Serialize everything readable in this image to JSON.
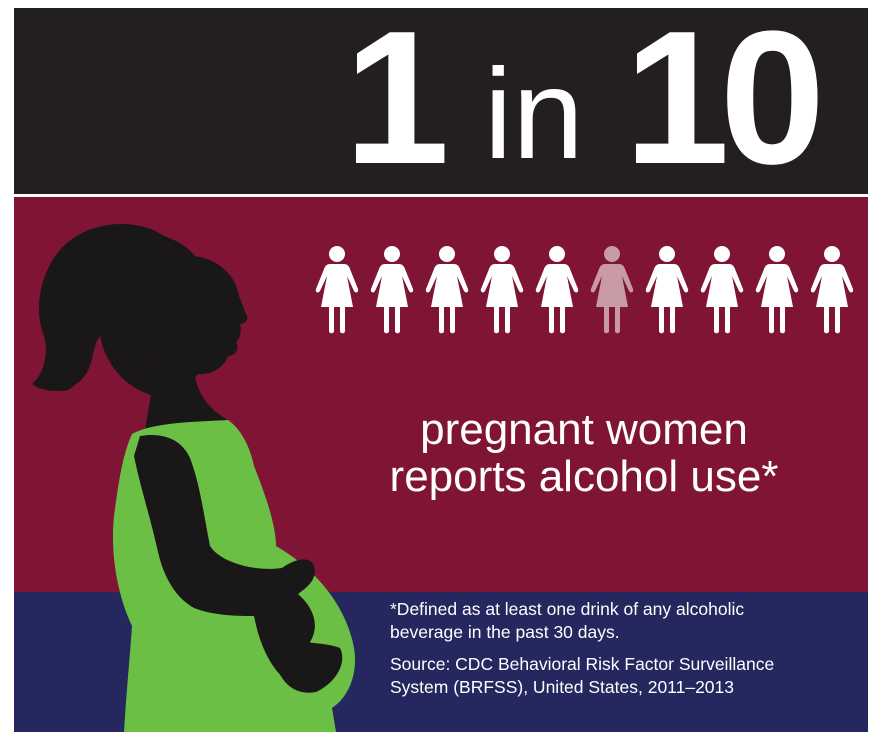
{
  "headline": {
    "number": "1",
    "connector": "in",
    "total": "10"
  },
  "icon_row": {
    "count": 10,
    "highlighted_index": 5,
    "icon": "woman-figure-icon",
    "colors": {
      "default": "#ffffff",
      "highlight": "#c89aa5"
    }
  },
  "statement": {
    "line1": "pregnant women",
    "line2": "reports alcohol use*"
  },
  "footnote": {
    "definition_line1": "*Defined as at least one drink of any alcoholic",
    "definition_line2": "beverage in the past 30 days.",
    "source_line1": "Source: CDC Behavioral Risk Factor Surveillance",
    "source_line2": "System (BRFSS), United States, 2011–2013"
  },
  "illustration": {
    "icon": "pregnant-woman-silhouette-icon",
    "dress_color": "#6cbf45"
  },
  "colors": {
    "top_band": "#231f20",
    "middle_band": "#7f1435",
    "bottom_band": "#25275f",
    "text": "#ffffff"
  }
}
